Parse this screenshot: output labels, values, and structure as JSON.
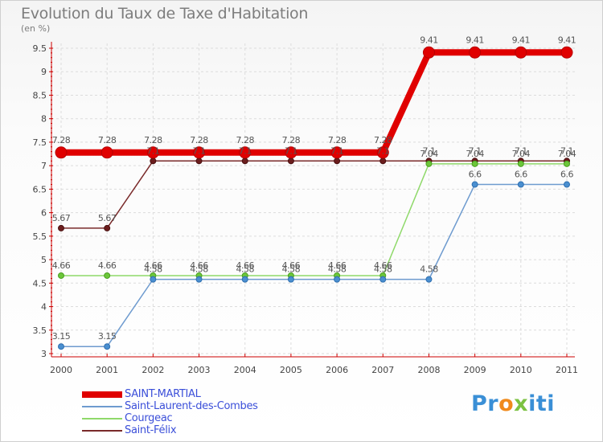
{
  "chart_data": {
    "type": "line",
    "title": "Evolution du Taux de Taxe d'Habitation",
    "unit_label": "(en %)",
    "xlabel": "",
    "ylabel": "",
    "x": [
      "2000",
      "2001",
      "2002",
      "2003",
      "2004",
      "2005",
      "2006",
      "2007",
      "2008",
      "2009",
      "2010",
      "2011"
    ],
    "ylim": [
      3,
      9.5
    ],
    "yticks": [
      "3",
      "3.5",
      "4",
      "4.5",
      "5",
      "5.5",
      "6",
      "6.5",
      "7",
      "7.5",
      "8",
      "8.5",
      "9",
      "9.5"
    ],
    "grid": true,
    "legend_position": "bottom-left",
    "series": [
      {
        "name": "SAINT-MARTIAL",
        "color": "#e00000",
        "values": [
          7.28,
          7.28,
          7.28,
          7.28,
          7.28,
          7.28,
          7.28,
          7.28,
          9.41,
          9.41,
          9.41,
          9.41
        ],
        "labels": [
          "7.28",
          "7.28",
          "7.28",
          "7.28",
          "7.28",
          "7.28",
          "7.28",
          "7.28",
          "9.41",
          "9.41",
          "9.41",
          "9.41"
        ]
      },
      {
        "name": "Saint-Laurent-des-Combes",
        "color": "#6e9bcf",
        "values": [
          3.15,
          3.15,
          4.58,
          4.58,
          4.58,
          4.58,
          4.58,
          4.58,
          4.58,
          6.6,
          6.6,
          6.6
        ],
        "labels": [
          "3.15",
          "3.15",
          "4.58",
          "4.58",
          "4.58",
          "4.58",
          "4.58",
          "4.58",
          "4.58",
          "6.6",
          "6.6",
          "6.6"
        ]
      },
      {
        "name": "Courgeac",
        "color": "#8fd96a",
        "values": [
          4.66,
          4.66,
          4.66,
          4.66,
          4.66,
          4.66,
          4.66,
          4.66,
          7.04,
          7.04,
          7.04,
          7.04
        ],
        "labels": [
          "4.66",
          "4.66",
          "4.66",
          "4.66",
          "4.66",
          "4.66",
          "4.66",
          "4.66",
          "7.04",
          "7.04",
          "7.04",
          "7.04"
        ]
      },
      {
        "name": "Saint-Félix",
        "color": "#7a2a2a",
        "values": [
          5.67,
          5.67,
          7.1,
          7.1,
          7.1,
          7.1,
          7.1,
          7.1,
          7.1,
          7.1,
          7.1,
          7.1
        ],
        "labels": [
          "5.67",
          "5.67",
          "7.1",
          "7.1",
          "7.1",
          "7.1",
          "7.1",
          "7.1",
          "7.1",
          "7.1",
          "7.1",
          "7.1"
        ]
      }
    ]
  },
  "logo": {
    "text": "Proxiti",
    "parts": [
      "Pr",
      "o",
      "x",
      "iti"
    ]
  }
}
